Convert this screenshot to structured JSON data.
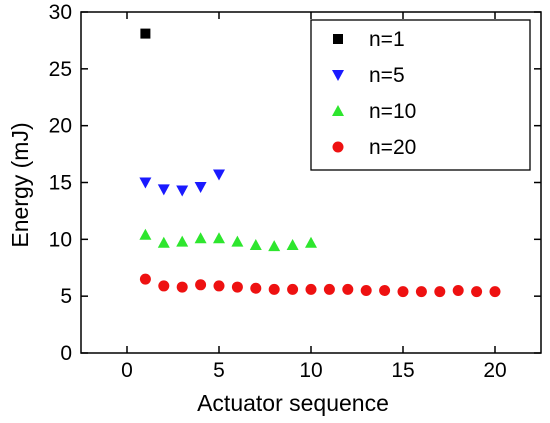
{
  "chart_data": {
    "type": "scatter",
    "title": "",
    "xlabel": "Actuator sequence",
    "ylabel": "Energy  (mJ)",
    "xlim": [
      -2.5,
      22.5
    ],
    "ylim": [
      0,
      30
    ],
    "xticks": [
      0,
      5,
      10,
      15,
      20
    ],
    "yticks": [
      0,
      5,
      10,
      15,
      20,
      25,
      30
    ],
    "grid": false,
    "legend_position": "top-right",
    "series": [
      {
        "name": "n=1",
        "marker": "square",
        "color": "#000000",
        "x": [
          1
        ],
        "y": [
          28.1
        ]
      },
      {
        "name": "n=5",
        "marker": "triangle-down",
        "color": "#1a1aff",
        "x": [
          1,
          2,
          3,
          4,
          5
        ],
        "y": [
          15.0,
          14.4,
          14.3,
          14.6,
          15.7
        ]
      },
      {
        "name": "n=10",
        "marker": "triangle-up",
        "color": "#2ee62e",
        "x": [
          1,
          2,
          3,
          4,
          5,
          6,
          7,
          8,
          9,
          10
        ],
        "y": [
          10.4,
          9.7,
          9.8,
          10.1,
          10.1,
          9.8,
          9.5,
          9.4,
          9.5,
          9.7
        ]
      },
      {
        "name": "n=20",
        "marker": "circle",
        "color": "#ee1111",
        "x": [
          1,
          2,
          3,
          4,
          5,
          6,
          7,
          8,
          9,
          10,
          11,
          12,
          13,
          14,
          15,
          16,
          17,
          18,
          19,
          20
        ],
        "y": [
          6.5,
          5.9,
          5.8,
          6.0,
          5.9,
          5.8,
          5.7,
          5.6,
          5.6,
          5.6,
          5.6,
          5.6,
          5.5,
          5.5,
          5.4,
          5.4,
          5.4,
          5.5,
          5.4,
          5.4
        ]
      }
    ]
  }
}
